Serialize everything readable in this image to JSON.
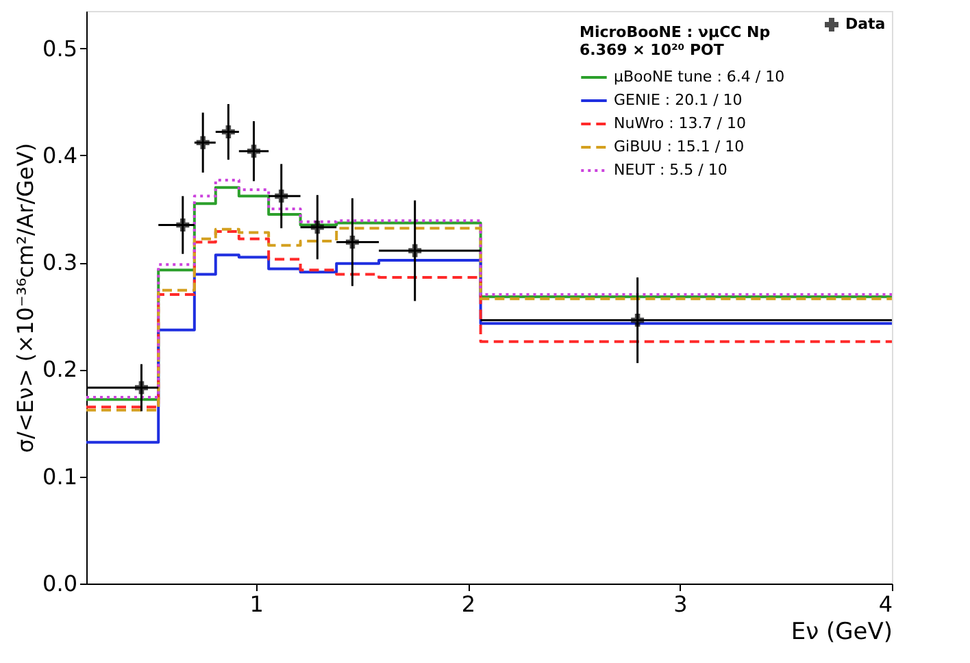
{
  "chart_data": {
    "type": "histogram",
    "xlabel": "Eν (GeV)",
    "ylabel": "σ/<Eν> (×10⁻³⁶cm²/Ar/GeV)",
    "legend_title": "MicroBooNE : νμCC Np\n6.369 × 10²⁰ POT",
    "bins": [
      0.2,
      0.54,
      0.71,
      0.81,
      0.92,
      1.06,
      1.21,
      1.38,
      1.58,
      2.06,
      4
    ],
    "series": [
      {
        "name": "µBooNE tune : 6.4 / 10",
        "color": "#2ca02c",
        "line_style": "solid",
        "values": [
          0.172,
          0.293,
          0.355,
          0.37,
          0.362,
          0.345,
          0.335,
          0.337,
          0.337,
          0.268
        ]
      },
      {
        "name": "GENIE : 20.1 / 10",
        "color": "#1f2fe0",
        "line_style": "solid",
        "values": [
          0.132,
          0.237,
          0.289,
          0.307,
          0.305,
          0.294,
          0.291,
          0.299,
          0.302,
          0.243
        ]
      },
      {
        "name": "NuWro : 13.7 / 10",
        "color": "#ff2a2a",
        "line_style": "dashed",
        "values": [
          0.165,
          0.27,
          0.319,
          0.329,
          0.322,
          0.303,
          0.293,
          0.289,
          0.286,
          0.226
        ]
      },
      {
        "name": "GiBUU : 15.1 / 10",
        "color": "#d4a020",
        "line_style": "dashed",
        "values": [
          0.162,
          0.274,
          0.322,
          0.331,
          0.328,
          0.316,
          0.32,
          0.332,
          0.332,
          0.266
        ]
      },
      {
        "name": "NEUT : 5.5 / 10",
        "color": "#cc44dd",
        "line_style": "dotted",
        "values": [
          0.174,
          0.298,
          0.362,
          0.377,
          0.368,
          0.35,
          0.338,
          0.339,
          0.339,
          0.27
        ]
      },
      {
        "name": "Data",
        "type": "scatter",
        "color": "#000000",
        "marker": "cross",
        "x": [
          0.46,
          0.655,
          0.75,
          0.87,
          0.99,
          1.12,
          1.29,
          1.455,
          1.75,
          2.8
        ],
        "values": [
          0.183,
          0.335,
          0.412,
          0.422,
          0.404,
          0.362,
          0.333,
          0.319,
          0.311,
          0.246
        ],
        "errors": [
          0.022,
          0.027,
          0.028,
          0.026,
          0.028,
          0.03,
          0.03,
          0.041,
          0.047,
          0.04
        ],
        "xerrors": [
          [
            0.2,
            0.54
          ],
          [
            0.54,
            0.71
          ],
          [
            0.71,
            0.81
          ],
          [
            0.81,
            0.92
          ],
          [
            0.92,
            1.06
          ],
          [
            1.06,
            1.21
          ],
          [
            1.21,
            1.38
          ],
          [
            1.38,
            1.58
          ],
          [
            1.58,
            2.06
          ],
          [
            2.06,
            4
          ]
        ]
      }
    ],
    "xlim": [
      0.2,
      4
    ],
    "xticks": [
      1,
      2,
      3,
      4
    ],
    "ylim": [
      0,
      0.535
    ],
    "yticks": [
      {
        "value": 0,
        "label": "0.0"
      },
      {
        "value": 0.1,
        "label": "0.1"
      },
      {
        "value": 0.2,
        "label": "0.2"
      },
      {
        "value": 0.3,
        "label": "0.3"
      },
      {
        "value": 0.4,
        "label": "0.4"
      },
      {
        "value": 0.5,
        "label": "0.5"
      }
    ],
    "grid": false,
    "legend": "top right"
  }
}
